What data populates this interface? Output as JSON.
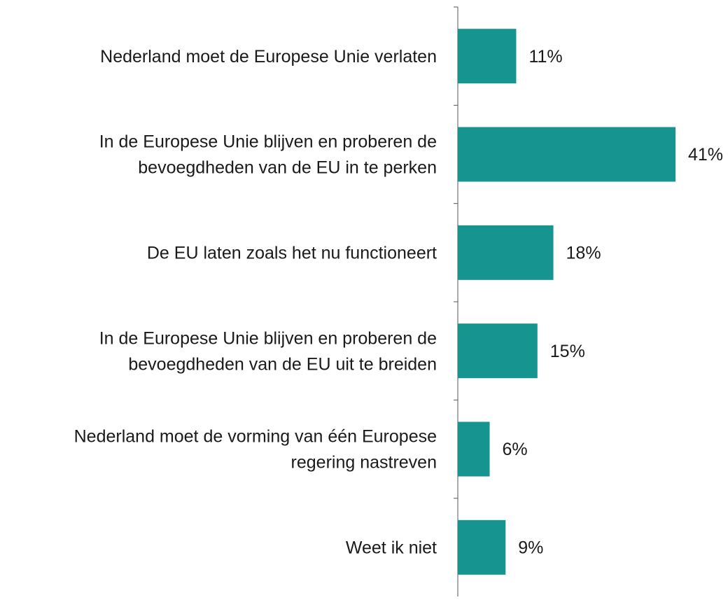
{
  "chart_data": {
    "type": "bar",
    "orientation": "horizontal",
    "categories": [
      [
        "Nederland moet de Europese Unie verlaten"
      ],
      [
        "In de Europese Unie blijven en proberen de",
        "bevoegdheden van de EU in te perken"
      ],
      [
        "De EU laten zoals het nu functioneert"
      ],
      [
        "In de Europese Unie blijven en proberen de",
        "bevoegdheden van de EU uit te breiden"
      ],
      [
        "Nederland moet de vorming van één Europese",
        "regering nastreven"
      ],
      [
        "Weet ik niet"
      ]
    ],
    "values": [
      11,
      41,
      18,
      15,
      6,
      9
    ],
    "value_labels": [
      "11%",
      "41%",
      "18%",
      "15%",
      "6%",
      "9%"
    ],
    "color": "#159490"
  }
}
